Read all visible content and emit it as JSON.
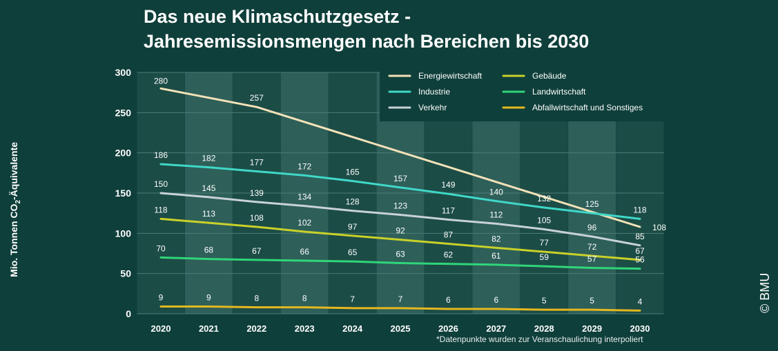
{
  "header": {
    "title_line1": "Das neue Klimaschutzgesetz -",
    "title_line2": "Jahresemissionsmengen nach Bereichen bis 2030"
  },
  "axis": {
    "ylabel_main": "Mio. Tonnen CO",
    "ylabel_sub": "2",
    "ylabel_end": "-Äquivalente"
  },
  "footnote": "*Datenpunkte wurden zur Veranschaulichung interpoliert",
  "copyright": "© BMU",
  "chart_data": {
    "type": "line",
    "title": "Das neue Klimaschutzgesetz - Jahresemissionsmengen nach Bereichen bis 2030",
    "xlabel": "",
    "ylabel": "Mio. Tonnen CO2-Äquivalente",
    "ylim": [
      0,
      300
    ],
    "yticks": [
      0,
      50,
      100,
      150,
      200,
      250,
      300
    ],
    "categories": [
      "2020",
      "2021",
      "2022",
      "2023",
      "2024",
      "2025",
      "2026",
      "2027",
      "2028",
      "2029",
      "2030"
    ],
    "series": [
      {
        "name": "Energiewirtschaft",
        "color": "#f3e2b8",
        "values": [
          280,
          null,
          257,
          null,
          null,
          null,
          null,
          null,
          null,
          null,
          108
        ]
      },
      {
        "name": "Industrie",
        "color": "#3fd8c8",
        "values": [
          186,
          182,
          177,
          172,
          165,
          157,
          149,
          140,
          132,
          125,
          118
        ]
      },
      {
        "name": "Verkehr",
        "color": "#c8d3d6",
        "values": [
          150,
          145,
          139,
          134,
          128,
          123,
          117,
          112,
          105,
          96,
          85
        ]
      },
      {
        "name": "Gebäude",
        "color": "#c9d12a",
        "values": [
          118,
          113,
          108,
          102,
          97,
          92,
          87,
          82,
          77,
          72,
          67
        ]
      },
      {
        "name": "Landwirtschaft",
        "color": "#2fd67a",
        "values": [
          70,
          68,
          67,
          66,
          65,
          63,
          62,
          61,
          59,
          57,
          56
        ]
      },
      {
        "name": "Abfallwirtschaft und Sonstiges",
        "color": "#e6b81e",
        "values": [
          9,
          9,
          8,
          8,
          7,
          7,
          6,
          6,
          5,
          5,
          4
        ]
      }
    ]
  }
}
